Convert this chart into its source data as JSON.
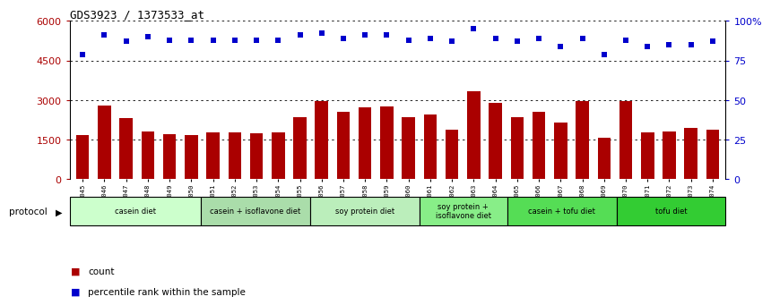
{
  "title": "GDS3923 / 1373533_at",
  "samples": [
    "GSM586045",
    "GSM586046",
    "GSM586047",
    "GSM586048",
    "GSM586049",
    "GSM586050",
    "GSM586051",
    "GSM586052",
    "GSM586053",
    "GSM586054",
    "GSM586055",
    "GSM586056",
    "GSM586057",
    "GSM586058",
    "GSM586059",
    "GSM586060",
    "GSM586061",
    "GSM586062",
    "GSM586063",
    "GSM586064",
    "GSM586065",
    "GSM586066",
    "GSM586067",
    "GSM586068",
    "GSM586069",
    "GSM586070",
    "GSM586071",
    "GSM586072",
    "GSM586073",
    "GSM586074"
  ],
  "counts": [
    1680,
    2780,
    2320,
    1820,
    1690,
    1680,
    1760,
    1790,
    1750,
    1790,
    2340,
    2960,
    2560,
    2720,
    2760,
    2340,
    2460,
    1870,
    3320,
    2880,
    2360,
    2570,
    2140,
    2950,
    1580,
    2960,
    1760,
    1820,
    1960,
    1860
  ],
  "percentile_ranks": [
    79,
    91,
    87,
    90,
    88,
    88,
    88,
    88,
    88,
    88,
    91,
    92,
    89,
    91,
    91,
    88,
    89,
    87,
    95,
    89,
    87,
    89,
    84,
    89,
    79,
    88,
    84,
    85,
    85,
    87
  ],
  "bar_color": "#aa0000",
  "dot_color": "#0000cc",
  "ylim_left": [
    0,
    6000
  ],
  "ylim_right": [
    0,
    100
  ],
  "yticks_left": [
    0,
    1500,
    3000,
    4500,
    6000
  ],
  "yticks_right": [
    0,
    25,
    50,
    75,
    100
  ],
  "ytick_right_labels": [
    "0",
    "25",
    "50",
    "75",
    "100%"
  ],
  "grid_color": "black",
  "protocol_groups": [
    {
      "label": "casein diet",
      "start": 0,
      "end": 6,
      "color": "#ccffcc"
    },
    {
      "label": "casein + isoflavone diet",
      "start": 6,
      "end": 11,
      "color": "#aaddaa"
    },
    {
      "label": "soy protein diet",
      "start": 11,
      "end": 16,
      "color": "#bbeebb"
    },
    {
      "label": "soy protein +\nisoflavone diet",
      "start": 16,
      "end": 20,
      "color": "#88ee88"
    },
    {
      "label": "casein + tofu diet",
      "start": 20,
      "end": 25,
      "color": "#55dd55"
    },
    {
      "label": "tofu diet",
      "start": 25,
      "end": 30,
      "color": "#33cc33"
    }
  ],
  "legend_count_label": "count",
  "legend_pct_label": "percentile rank within the sample",
  "protocol_label": "protocol"
}
